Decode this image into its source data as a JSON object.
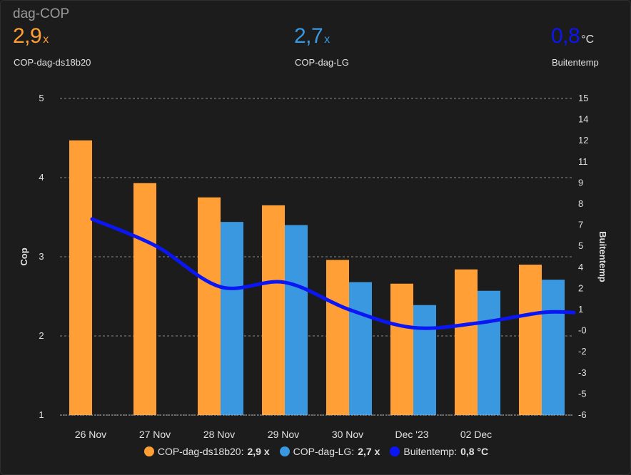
{
  "card": {
    "title": "dag-COP"
  },
  "stats": [
    {
      "value": "2,9",
      "unit": "x",
      "name": "COP-dag-ds18b20",
      "color": "#ff9f36"
    },
    {
      "value": "2,7",
      "unit": "x",
      "name": "COP-dag-LG",
      "color": "#3a98e0"
    },
    {
      "value": "0,8",
      "unit": "°C",
      "name": "Buitentemp",
      "color": "#0b16f5"
    }
  ],
  "legend": [
    {
      "name": "COP-dag-ds18b20:",
      "value": "2,9 x",
      "color": "#ff9f36"
    },
    {
      "name": "COP-dag-LG:",
      "value": "2,7 x",
      "color": "#3a98e0"
    },
    {
      "name": "Buitentemp:",
      "value": "0,8 °C",
      "color": "#0b16f5"
    }
  ],
  "chart_data": {
    "type": "bar",
    "title": "dag-COP",
    "categories": [
      "26 Nov",
      "27 Nov",
      "28 Nov",
      "29 Nov",
      "30 Nov",
      "Dec '23",
      "02 Dec",
      ""
    ],
    "series": [
      {
        "name": "COP-dag-ds18b20",
        "type": "bar",
        "axis": "left",
        "color": "#ff9f36",
        "values": [
          4.47,
          3.93,
          3.75,
          3.65,
          2.96,
          2.66,
          2.84,
          2.9
        ]
      },
      {
        "name": "COP-dag-LG",
        "type": "bar",
        "axis": "left",
        "color": "#3a98e0",
        "values": [
          null,
          null,
          3.44,
          3.4,
          2.68,
          2.39,
          2.57,
          2.71
        ]
      },
      {
        "name": "Buitentemp",
        "type": "line",
        "axis": "right",
        "color": "#0b16f5",
        "values": [
          7.0,
          5.2,
          2.5,
          2.8,
          1.0,
          -0.2,
          0.1,
          0.8
        ]
      }
    ],
    "ylabel": "Cop",
    "y2label": "Buitentemp",
    "ylim": [
      1,
      5
    ],
    "y2lim": [
      -6,
      15
    ],
    "yticks": [
      "1",
      "2",
      "3",
      "4",
      "5"
    ],
    "y2ticks": [
      "-6",
      "-5",
      "-3",
      "-2",
      "-0",
      "1",
      "2",
      "4",
      "5",
      "7",
      "8",
      "9",
      "11",
      "12",
      "14",
      "15"
    ],
    "grid": true
  }
}
